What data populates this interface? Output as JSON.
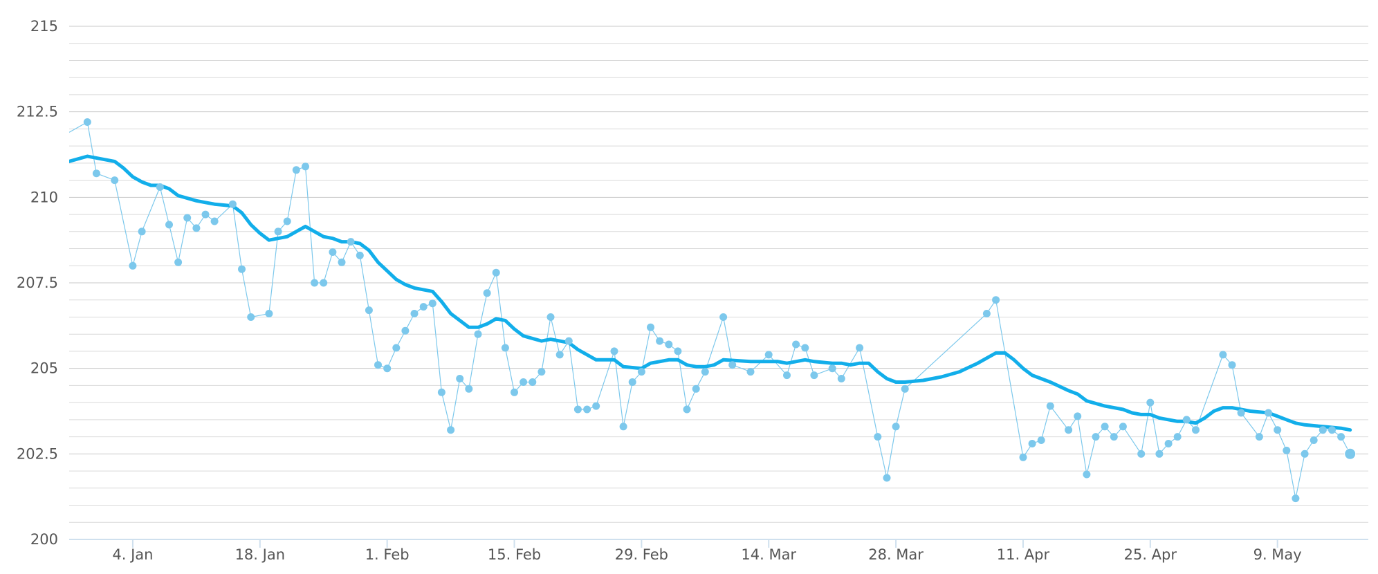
{
  "chart_data": {
    "type": "line",
    "ylim": [
      200,
      215
    ],
    "yticks": [
      {
        "value": 215,
        "label": "215"
      },
      {
        "value": 212.5,
        "label": "212.5"
      },
      {
        "value": 210,
        "label": "210"
      },
      {
        "value": 207.5,
        "label": "207.5"
      },
      {
        "value": 205,
        "label": "205"
      },
      {
        "value": 202.5,
        "label": "202.5"
      },
      {
        "value": 200,
        "label": "200"
      }
    ],
    "xlim": [
      "2015-12-28",
      "2016-05-19"
    ],
    "xticks": [
      {
        "value": "2016-01-04",
        "label": "4. Jan"
      },
      {
        "value": "2016-01-18",
        "label": "18. Jan"
      },
      {
        "value": "2016-02-01",
        "label": "1. Feb"
      },
      {
        "value": "2016-02-15",
        "label": "15. Feb"
      },
      {
        "value": "2016-02-29",
        "label": "29. Feb"
      },
      {
        "value": "2016-03-14",
        "label": "14. Mar"
      },
      {
        "value": "2016-03-28",
        "label": "28. Mar"
      },
      {
        "value": "2016-04-11",
        "label": "11. Apr"
      },
      {
        "value": "2016-04-25",
        "label": "25. Apr"
      },
      {
        "value": "2016-05-09",
        "label": "9. May"
      }
    ],
    "grid": true,
    "colors": {
      "daily": "#7cc8ec",
      "average": "#12aeea",
      "grid": "#d9d9d9",
      "axis": "#cfe0ee"
    },
    "series": [
      {
        "kind": "daily-points",
        "points": [
          [
            "2015-12-30",
            212.2
          ],
          [
            "2015-12-31",
            210.7
          ],
          [
            "2016-01-02",
            210.5
          ],
          [
            "2016-01-04",
            208.0
          ],
          [
            "2016-01-05",
            209.0
          ],
          [
            "2016-01-07",
            210.3
          ],
          [
            "2016-01-08",
            209.2
          ],
          [
            "2016-01-09",
            208.1
          ],
          [
            "2016-01-10",
            209.4
          ],
          [
            "2016-01-11",
            209.1
          ],
          [
            "2016-01-12",
            209.5
          ],
          [
            "2016-01-13",
            209.3
          ],
          [
            "2016-01-15",
            209.8
          ],
          [
            "2016-01-16",
            207.9
          ],
          [
            "2016-01-17",
            206.5
          ],
          [
            "2016-01-19",
            206.6
          ],
          [
            "2016-01-20",
            209.0
          ],
          [
            "2016-01-21",
            209.3
          ],
          [
            "2016-01-22",
            210.8
          ],
          [
            "2016-01-23",
            210.9
          ],
          [
            "2016-01-24",
            207.5
          ],
          [
            "2016-01-25",
            207.5
          ],
          [
            "2016-01-26",
            208.4
          ],
          [
            "2016-01-27",
            208.1
          ],
          [
            "2016-01-28",
            208.7
          ],
          [
            "2016-01-29",
            208.3
          ],
          [
            "2016-01-30",
            206.7
          ],
          [
            "2016-01-31",
            205.1
          ],
          [
            "2016-02-01",
            205.0
          ],
          [
            "2016-02-02",
            205.6
          ],
          [
            "2016-02-03",
            206.1
          ],
          [
            "2016-02-04",
            206.6
          ],
          [
            "2016-02-05",
            206.8
          ],
          [
            "2016-02-06",
            206.9
          ],
          [
            "2016-02-07",
            204.3
          ],
          [
            "2016-02-08",
            203.2
          ],
          [
            "2016-02-09",
            204.7
          ],
          [
            "2016-02-10",
            204.4
          ],
          [
            "2016-02-11",
            206.0
          ],
          [
            "2016-02-12",
            207.2
          ],
          [
            "2016-02-13",
            207.8
          ],
          [
            "2016-02-14",
            205.6
          ],
          [
            "2016-02-15",
            204.3
          ],
          [
            "2016-02-16",
            204.6
          ],
          [
            "2016-02-17",
            204.6
          ],
          [
            "2016-02-18",
            204.9
          ],
          [
            "2016-02-19",
            206.5
          ],
          [
            "2016-02-20",
            205.4
          ],
          [
            "2016-02-21",
            205.8
          ],
          [
            "2016-02-22",
            203.8
          ],
          [
            "2016-02-23",
            203.8
          ],
          [
            "2016-02-24",
            203.9
          ],
          [
            "2016-02-26",
            205.5
          ],
          [
            "2016-02-27",
            203.3
          ],
          [
            "2016-02-28",
            204.6
          ],
          [
            "2016-02-29",
            204.9
          ],
          [
            "2016-03-01",
            206.2
          ],
          [
            "2016-03-02",
            205.8
          ],
          [
            "2016-03-03",
            205.7
          ],
          [
            "2016-03-04",
            205.5
          ],
          [
            "2016-03-05",
            203.8
          ],
          [
            "2016-03-06",
            204.4
          ],
          [
            "2016-03-07",
            204.9
          ],
          [
            "2016-03-09",
            206.5
          ],
          [
            "2016-03-10",
            205.1
          ],
          [
            "2016-03-12",
            204.9
          ],
          [
            "2016-03-14",
            205.4
          ],
          [
            "2016-03-16",
            204.8
          ],
          [
            "2016-03-17",
            205.7
          ],
          [
            "2016-03-18",
            205.6
          ],
          [
            "2016-03-19",
            204.8
          ],
          [
            "2016-03-21",
            205.0
          ],
          [
            "2016-03-22",
            204.7
          ],
          [
            "2016-03-24",
            205.6
          ],
          [
            "2016-03-26",
            203.0
          ],
          [
            "2016-03-27",
            201.8
          ],
          [
            "2016-03-28",
            203.3
          ],
          [
            "2016-03-29",
            204.4
          ],
          [
            "2016-04-07",
            206.6
          ],
          [
            "2016-04-08",
            207.0
          ],
          [
            "2016-04-11",
            202.4
          ],
          [
            "2016-04-12",
            202.8
          ],
          [
            "2016-04-13",
            202.9
          ],
          [
            "2016-04-14",
            203.9
          ],
          [
            "2016-04-16",
            203.2
          ],
          [
            "2016-04-17",
            203.6
          ],
          [
            "2016-04-18",
            201.9
          ],
          [
            "2016-04-19",
            203.0
          ],
          [
            "2016-04-20",
            203.3
          ],
          [
            "2016-04-21",
            203.0
          ],
          [
            "2016-04-22",
            203.3
          ],
          [
            "2016-04-24",
            202.5
          ],
          [
            "2016-04-25",
            204.0
          ],
          [
            "2016-04-26",
            202.5
          ],
          [
            "2016-04-27",
            202.8
          ],
          [
            "2016-04-28",
            203.0
          ],
          [
            "2016-04-29",
            203.5
          ],
          [
            "2016-04-30",
            203.2
          ],
          [
            "2016-05-03",
            205.4
          ],
          [
            "2016-05-04",
            205.1
          ],
          [
            "2016-05-05",
            203.7
          ],
          [
            "2016-05-07",
            203.0
          ],
          [
            "2016-05-08",
            203.7
          ],
          [
            "2016-05-09",
            203.2
          ],
          [
            "2016-05-10",
            202.6
          ],
          [
            "2016-05-11",
            201.2
          ],
          [
            "2016-05-12",
            202.5
          ],
          [
            "2016-05-13",
            202.9
          ],
          [
            "2016-05-14",
            203.2
          ],
          [
            "2016-05-15",
            203.2
          ],
          [
            "2016-05-16",
            203.0
          ],
          [
            "2016-05-17",
            202.5
          ]
        ]
      },
      {
        "kind": "moving-average",
        "points": [
          [
            "2015-12-28",
            211.05
          ],
          [
            "2015-12-30",
            211.2
          ],
          [
            "2016-01-01",
            211.1
          ],
          [
            "2016-01-02",
            211.05
          ],
          [
            "2016-01-03",
            210.85
          ],
          [
            "2016-01-04",
            210.6
          ],
          [
            "2016-01-05",
            210.45
          ],
          [
            "2016-01-06",
            210.35
          ],
          [
            "2016-01-07",
            210.35
          ],
          [
            "2016-01-08",
            210.25
          ],
          [
            "2016-01-09",
            210.05
          ],
          [
            "2016-01-11",
            209.9
          ],
          [
            "2016-01-12",
            209.85
          ],
          [
            "2016-01-13",
            209.8
          ],
          [
            "2016-01-15",
            209.75
          ],
          [
            "2016-01-16",
            209.55
          ],
          [
            "2016-01-17",
            209.2
          ],
          [
            "2016-01-18",
            208.95
          ],
          [
            "2016-01-19",
            208.75
          ],
          [
            "2016-01-21",
            208.85
          ],
          [
            "2016-01-22",
            209.0
          ],
          [
            "2016-01-23",
            209.15
          ],
          [
            "2016-01-24",
            209.0
          ],
          [
            "2016-01-25",
            208.85
          ],
          [
            "2016-01-26",
            208.8
          ],
          [
            "2016-01-27",
            208.7
          ],
          [
            "2016-01-28",
            208.7
          ],
          [
            "2016-01-29",
            208.65
          ],
          [
            "2016-01-30",
            208.45
          ],
          [
            "2016-01-31",
            208.1
          ],
          [
            "2016-02-01",
            207.85
          ],
          [
            "2016-02-02",
            207.6
          ],
          [
            "2016-02-03",
            207.45
          ],
          [
            "2016-02-04",
            207.35
          ],
          [
            "2016-02-06",
            207.25
          ],
          [
            "2016-02-07",
            206.95
          ],
          [
            "2016-02-08",
            206.6
          ],
          [
            "2016-02-09",
            206.4
          ],
          [
            "2016-02-10",
            206.2
          ],
          [
            "2016-02-11",
            206.2
          ],
          [
            "2016-02-12",
            206.3
          ],
          [
            "2016-02-13",
            206.45
          ],
          [
            "2016-02-14",
            206.4
          ],
          [
            "2016-02-15",
            206.15
          ],
          [
            "2016-02-16",
            205.95
          ],
          [
            "2016-02-18",
            205.8
          ],
          [
            "2016-02-19",
            205.85
          ],
          [
            "2016-02-20",
            205.8
          ],
          [
            "2016-02-21",
            205.75
          ],
          [
            "2016-02-22",
            205.55
          ],
          [
            "2016-02-23",
            205.4
          ],
          [
            "2016-02-24",
            205.25
          ],
          [
            "2016-02-26",
            205.25
          ],
          [
            "2016-02-27",
            205.05
          ],
          [
            "2016-02-29",
            205.0
          ],
          [
            "2016-03-01",
            205.15
          ],
          [
            "2016-03-02",
            205.2
          ],
          [
            "2016-03-03",
            205.25
          ],
          [
            "2016-03-04",
            205.25
          ],
          [
            "2016-03-05",
            205.1
          ],
          [
            "2016-03-06",
            205.05
          ],
          [
            "2016-03-07",
            205.05
          ],
          [
            "2016-03-08",
            205.1
          ],
          [
            "2016-03-09",
            205.25
          ],
          [
            "2016-03-12",
            205.2
          ],
          [
            "2016-03-14",
            205.2
          ],
          [
            "2016-03-15",
            205.2
          ],
          [
            "2016-03-16",
            205.15
          ],
          [
            "2016-03-17",
            205.2
          ],
          [
            "2016-03-18",
            205.25
          ],
          [
            "2016-03-19",
            205.2
          ],
          [
            "2016-03-21",
            205.15
          ],
          [
            "2016-03-22",
            205.15
          ],
          [
            "2016-03-23",
            205.1
          ],
          [
            "2016-03-24",
            205.15
          ],
          [
            "2016-03-25",
            205.15
          ],
          [
            "2016-03-26",
            204.9
          ],
          [
            "2016-03-27",
            204.7
          ],
          [
            "2016-03-28",
            204.6
          ],
          [
            "2016-03-29",
            204.6
          ],
          [
            "2016-03-31",
            204.65
          ],
          [
            "2016-04-02",
            204.75
          ],
          [
            "2016-04-04",
            204.9
          ],
          [
            "2016-04-06",
            205.15
          ],
          [
            "2016-04-07",
            205.3
          ],
          [
            "2016-04-08",
            205.45
          ],
          [
            "2016-04-09",
            205.45
          ],
          [
            "2016-04-10",
            205.25
          ],
          [
            "2016-04-11",
            205.0
          ],
          [
            "2016-04-12",
            204.8
          ],
          [
            "2016-04-14",
            204.6
          ],
          [
            "2016-04-16",
            204.35
          ],
          [
            "2016-04-17",
            204.25
          ],
          [
            "2016-04-18",
            204.05
          ],
          [
            "2016-04-20",
            203.9
          ],
          [
            "2016-04-22",
            203.8
          ],
          [
            "2016-04-23",
            203.7
          ],
          [
            "2016-04-24",
            203.65
          ],
          [
            "2016-04-25",
            203.65
          ],
          [
            "2016-04-26",
            203.55
          ],
          [
            "2016-04-28",
            203.45
          ],
          [
            "2016-04-29",
            203.45
          ],
          [
            "2016-04-30",
            203.4
          ],
          [
            "2016-05-01",
            203.55
          ],
          [
            "2016-05-02",
            203.75
          ],
          [
            "2016-05-03",
            203.85
          ],
          [
            "2016-05-04",
            203.85
          ],
          [
            "2016-05-05",
            203.8
          ],
          [
            "2016-05-06",
            203.75
          ],
          [
            "2016-05-08",
            203.7
          ],
          [
            "2016-05-09",
            203.6
          ],
          [
            "2016-05-10",
            203.5
          ],
          [
            "2016-05-11",
            203.4
          ],
          [
            "2016-05-12",
            203.35
          ],
          [
            "2016-05-14",
            203.3
          ],
          [
            "2016-05-16",
            203.25
          ],
          [
            "2016-05-17",
            203.2
          ]
        ]
      }
    ]
  }
}
